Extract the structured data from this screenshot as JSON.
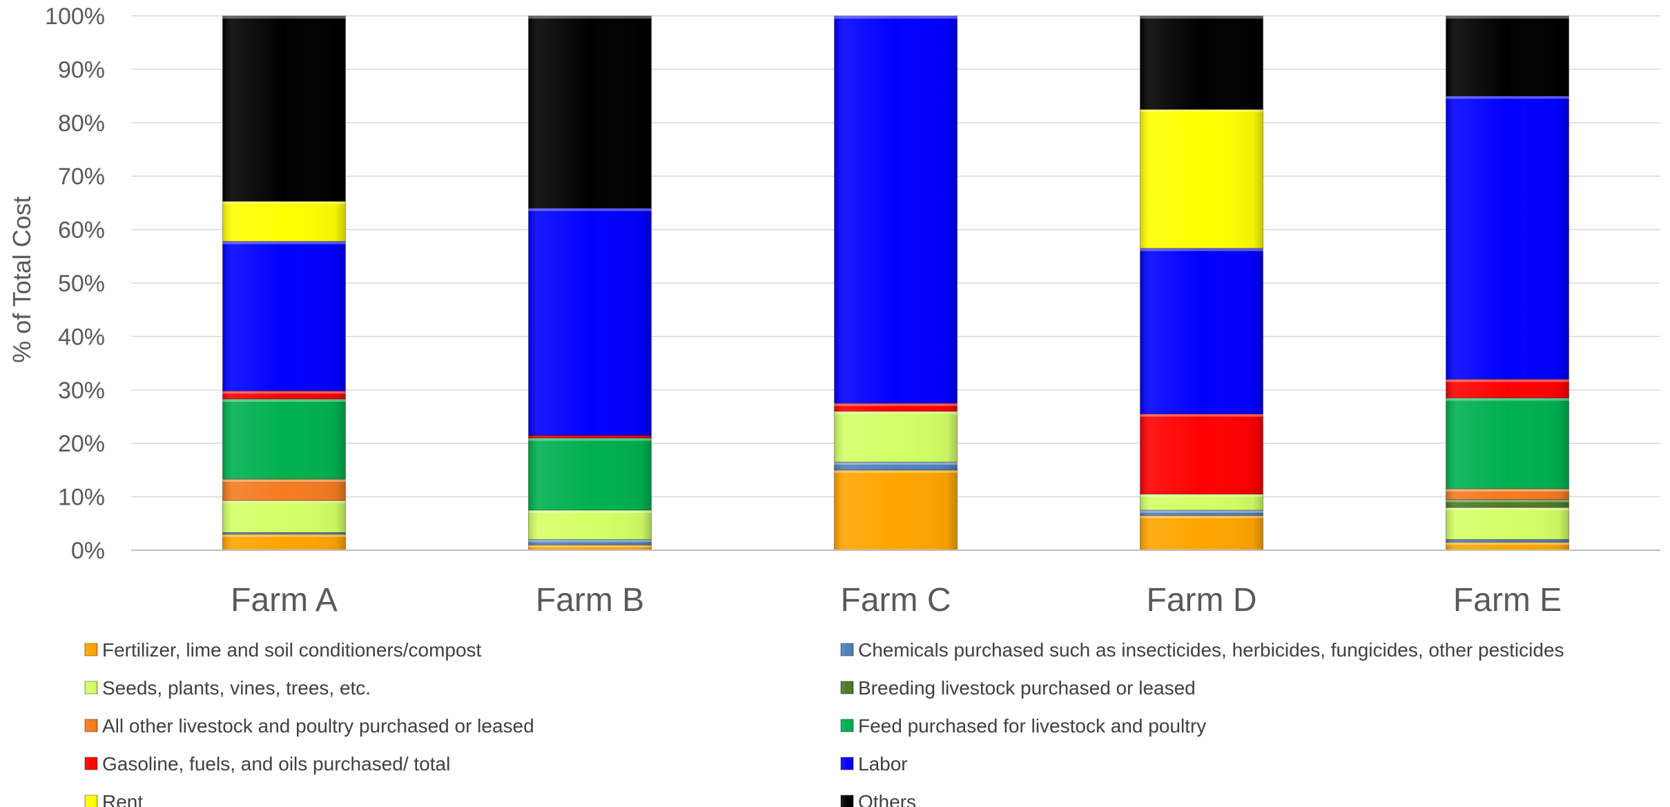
{
  "chart_data": {
    "type": "bar",
    "stacked": true,
    "percent_stacked": true,
    "title": "",
    "xlabel": "",
    "ylabel": "% of Total Cost",
    "ylim": [
      0,
      100
    ],
    "yticks": [
      "0%",
      "10%",
      "20%",
      "30%",
      "40%",
      "50%",
      "60%",
      "70%",
      "80%",
      "90%",
      "100%"
    ],
    "grid": true,
    "legend_position": "bottom",
    "categories": [
      "Farm A",
      "Farm B",
      "Farm C",
      "Farm D",
      "Farm E"
    ],
    "series": [
      {
        "name": "Fertilizer, lime and soil conditioners/compost",
        "color": "#FFA500",
        "values": [
          3,
          1,
          15,
          6.5,
          1.5
        ]
      },
      {
        "name": "Chemicals purchased such as insecticides, herbicides, fungicides, other pesticides",
        "color": "#4F81BD",
        "values": [
          0.3,
          1,
          1.5,
          1,
          0.5
        ]
      },
      {
        "name": "Seeds, plants, vines, trees, etc.",
        "color": "#D4FF66",
        "values": [
          6,
          5.5,
          9.5,
          3,
          6
        ]
      },
      {
        "name": "Breeding livestock purchased or leased",
        "color": "#4E7A28",
        "values": [
          0,
          0,
          0,
          0,
          1.5
        ]
      },
      {
        "name": "All other livestock and poultry purchased or leased",
        "color": "#F47B20",
        "values": [
          4,
          0,
          0,
          0,
          2
        ]
      },
      {
        "name": "Feed purchased for livestock and poultry",
        "color": "#00B050",
        "values": [
          15,
          13.5,
          0,
          0,
          17
        ]
      },
      {
        "name": "Gasoline, fuels, and oils purchased/ total",
        "color": "#FF0000",
        "values": [
          1.5,
          0.5,
          1.5,
          15,
          3.5
        ]
      },
      {
        "name": "Labor",
        "color": "#0000FF",
        "values": [
          28,
          42.5,
          72.5,
          31,
          53
        ]
      },
      {
        "name": "Rent",
        "color": "#FFFF00",
        "values": [
          7.5,
          0,
          0,
          26,
          0
        ]
      },
      {
        "name": "Others",
        "color": "#000000",
        "values": [
          34.7,
          36,
          0,
          17.5,
          15
        ]
      }
    ]
  }
}
